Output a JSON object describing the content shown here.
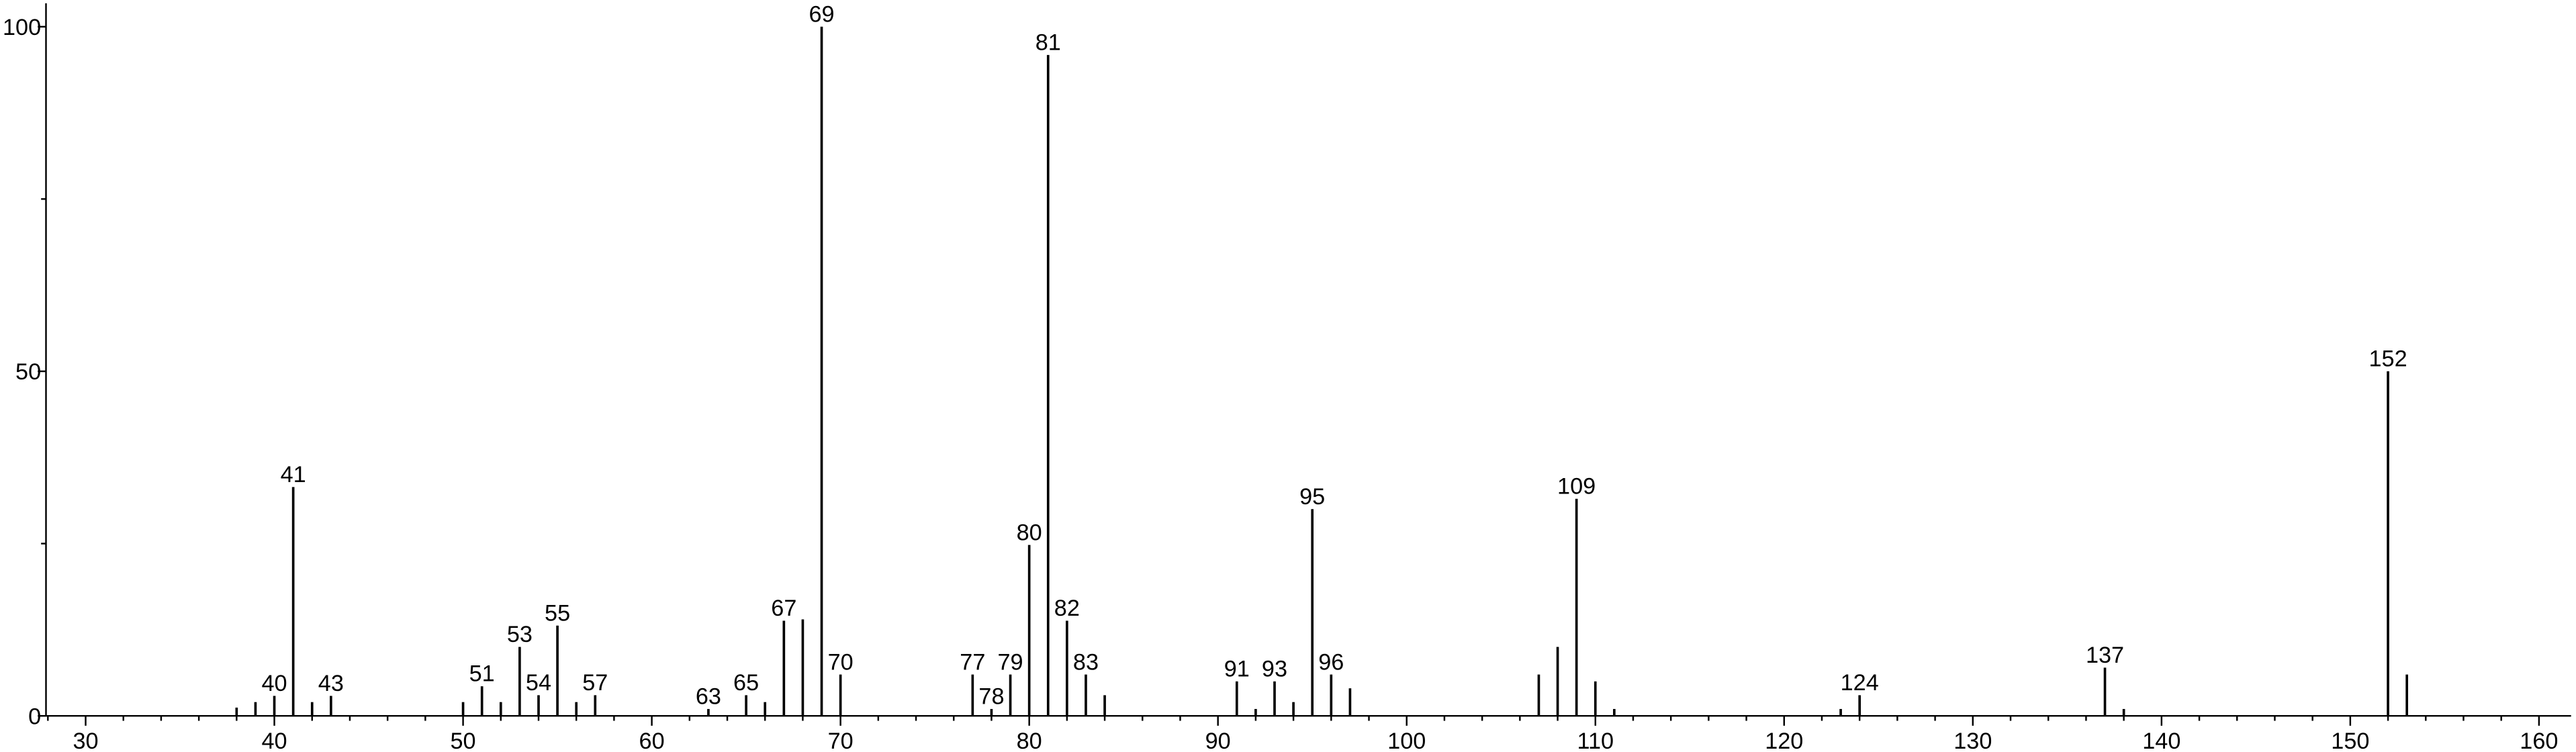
{
  "chart_data": {
    "type": "stem",
    "color": "#000000",
    "x": [
      38,
      39,
      40,
      41,
      42,
      43,
      50,
      51,
      52,
      53,
      54,
      55,
      56,
      57,
      63,
      65,
      66,
      67,
      68,
      69,
      70,
      77,
      78,
      79,
      80,
      81,
      82,
      83,
      84,
      91,
      92,
      93,
      94,
      95,
      96,
      97,
      107,
      108,
      109,
      110,
      111,
      123,
      124,
      137,
      138,
      152,
      153
    ],
    "values": [
      1.2,
      2,
      2.9,
      33.2,
      2,
      2.9,
      2,
      4.3,
      2,
      10,
      3,
      13.1,
      2,
      3,
      1,
      3,
      2,
      13.8,
      14,
      100,
      6,
      6,
      1,
      6,
      24.8,
      95.9,
      13.8,
      6,
      3,
      5,
      1,
      5,
      2,
      30,
      6,
      4,
      6,
      10,
      31.5,
      5,
      1,
      1,
      3,
      7,
      1,
      50,
      6
    ],
    "labels": [
      null,
      null,
      "40",
      "41",
      null,
      "43",
      null,
      "51",
      null,
      "53",
      "54",
      "55",
      null,
      "57",
      "63",
      "65",
      null,
      "67",
      null,
      "69",
      "70",
      "77",
      "78",
      "79",
      "80",
      "81",
      "82",
      "83",
      null,
      "91",
      null,
      "93",
      null,
      "95",
      "96",
      null,
      null,
      null,
      "109",
      null,
      null,
      null,
      "124",
      "137",
      null,
      "152",
      null
    ],
    "xlim": [
      27.9,
      161.7
    ],
    "xticks": [
      30,
      40,
      50,
      60,
      70,
      80,
      90,
      100,
      110,
      120,
      130,
      140,
      150,
      160
    ],
    "xminor_ticks": [
      28,
      32,
      34,
      36,
      38,
      42,
      44,
      46,
      48,
      52,
      54,
      56,
      58,
      62,
      64,
      66,
      68,
      72,
      74,
      76,
      78,
      82,
      84,
      86,
      88,
      92,
      94,
      96,
      98,
      102,
      104,
      106,
      108,
      112,
      114,
      116,
      118,
      122,
      124,
      126,
      128,
      132,
      134,
      136,
      138,
      142,
      144,
      146,
      148,
      152,
      154,
      156,
      158
    ],
    "ylim": [
      0,
      103.4
    ],
    "yticks": [
      0,
      50,
      100
    ],
    "yminor_ticks": [
      25,
      75
    ]
  }
}
